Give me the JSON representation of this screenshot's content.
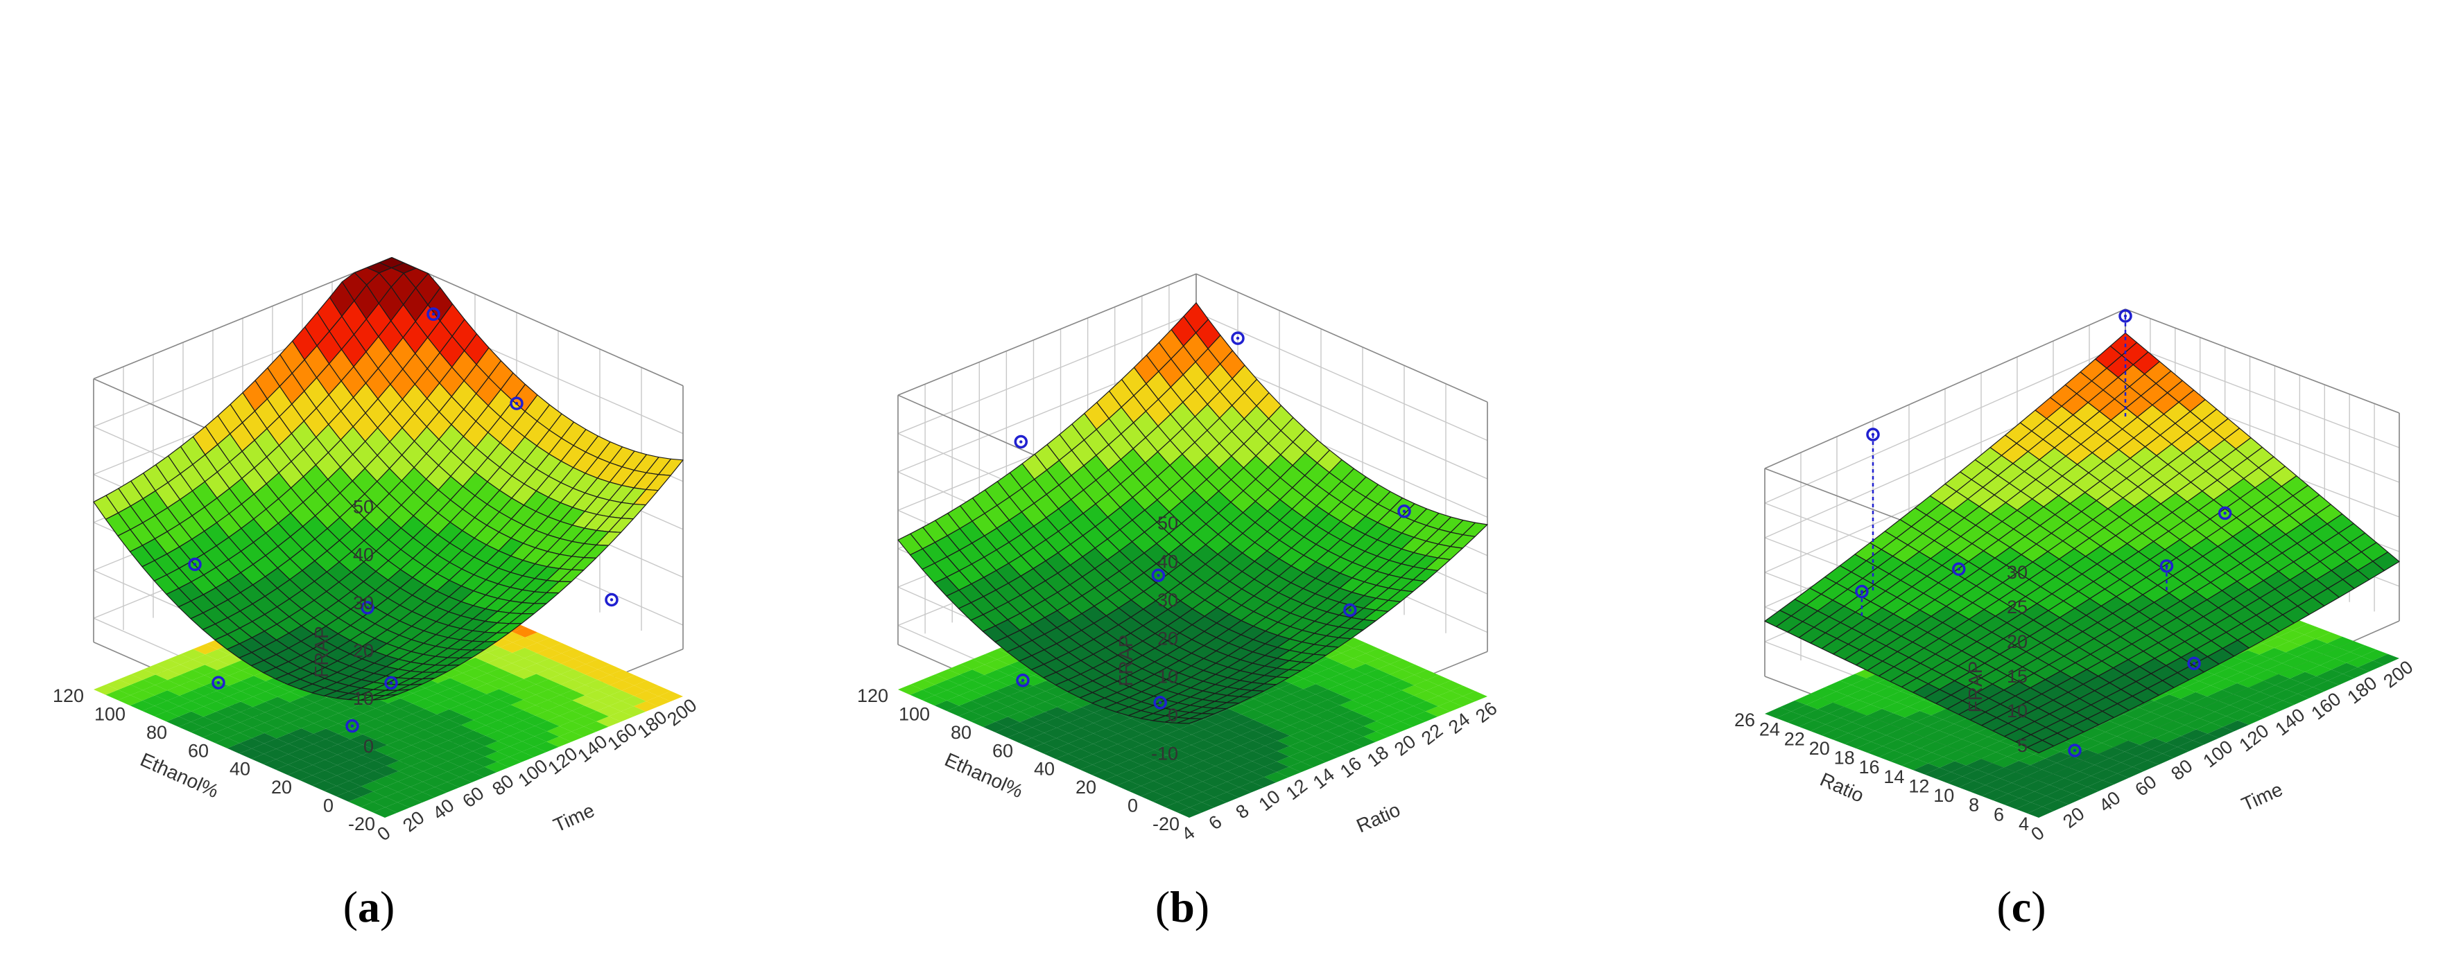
{
  "panels": [
    {
      "label": "(a)",
      "letter": "a",
      "chart_data": {
        "type": "surface3d",
        "zlabel": "FRAP",
        "xlabel": "Time",
        "ylabel": "Ethanol%",
        "x_ticks": [
          "0",
          "20",
          "40",
          "60",
          "80",
          "100",
          "120",
          "140",
          "160",
          "180",
          "200"
        ],
        "y_ticks": [
          "-20",
          "0",
          "20",
          "40",
          "60",
          "80",
          "100",
          "120"
        ],
        "z_ticks": [
          "0",
          "10",
          "20",
          "30",
          "40",
          "50"
        ],
        "xlim": [
          0,
          200
        ],
        "ylim": [
          -20,
          120
        ],
        "zlim": [
          -5,
          50
        ],
        "surface": {
          "form": "quadratic",
          "c": 4,
          "a": 0.06,
          "b": 0.0004,
          "ay": 0.0045,
          "by": -0.45
        },
        "points": [
          {
            "x": 200,
            "y": 100,
            "z": 42
          },
          {
            "x": 200,
            "y": 60,
            "z": 31
          },
          {
            "x": 40,
            "y": 100,
            "z": 10
          },
          {
            "x": 180,
            "y": 0,
            "z": 4
          },
          {
            "x": 100,
            "y": 60,
            "z": 1
          },
          {
            "x": 60,
            "y": 20,
            "z": -2
          },
          {
            "x": 0,
            "y": 60,
            "z": -2
          },
          {
            "x": 20,
            "y": 10,
            "z": -4
          }
        ]
      }
    },
    {
      "label": "(b)",
      "letter": "b",
      "chart_data": {
        "type": "surface3d",
        "zlabel": "FRAP",
        "xlabel": "Ratio",
        "ylabel": "Ethanol%",
        "x_ticks": [
          "4",
          "6",
          "8",
          "10",
          "12",
          "14",
          "16",
          "18",
          "20",
          "22",
          "24",
          "26"
        ],
        "y_ticks": [
          "-20",
          "0",
          "20",
          "40",
          "60",
          "80",
          "100",
          "120"
        ],
        "z_ticks": [
          "-10",
          "0",
          "10",
          "20",
          "30",
          "40",
          "50"
        ],
        "xlim": [
          4,
          26
        ],
        "ylim": [
          -20,
          120
        ],
        "zlim": [
          -15,
          50
        ],
        "surface": {
          "form": "quadratic",
          "c": -8,
          "a": 0.4,
          "b": 0.03,
          "ay": 0.0055,
          "by": -0.5
        },
        "points": [
          {
            "x": 26,
            "y": 100,
            "z": 38
          },
          {
            "x": 10,
            "y": 100,
            "z": 34
          },
          {
            "x": 26,
            "y": 20,
            "z": 12
          },
          {
            "x": 14,
            "y": 60,
            "z": 3
          },
          {
            "x": 22,
            "y": 20,
            "z": -8
          },
          {
            "x": 4,
            "y": 60,
            "z": -10
          },
          {
            "x": 8,
            "y": 20,
            "z": -12
          }
        ]
      }
    },
    {
      "label": "(c)",
      "letter": "c",
      "chart_data": {
        "type": "surface3d",
        "zlabel": "FRAP",
        "xlabel": "Time",
        "ylabel": "Ratio",
        "x_ticks": [
          "0",
          "20",
          "40",
          "60",
          "80",
          "100",
          "120",
          "140",
          "160",
          "180",
          "200"
        ],
        "y_ticks": [
          "4",
          "6",
          "8",
          "10",
          "12",
          "14",
          "16",
          "18",
          "20",
          "22",
          "24",
          "26"
        ],
        "z_ticks": [
          "5",
          "10",
          "15",
          "20",
          "25",
          "30"
        ],
        "xlim": [
          0,
          200
        ],
        "ylim": [
          4,
          26
        ],
        "zlim": [
          0,
          30
        ],
        "surface": {
          "form": "saddle",
          "c": 3.6,
          "ax": 0.04,
          "ay": 0.08,
          "bxy": 0.0028
        },
        "points": [
          {
            "x": 200,
            "y": 26,
            "z": 29,
            "base": 14
          },
          {
            "x": 60,
            "y": 26,
            "z": 28,
            "base": 5
          },
          {
            "x": 40,
            "y": 24,
            "z": 9,
            "base": 5
          },
          {
            "x": 80,
            "y": 22,
            "z": 9,
            "base": 9
          },
          {
            "x": 140,
            "y": 14,
            "z": 8,
            "base": 4
          },
          {
            "x": 200,
            "y": 18,
            "z": 6,
            "base": 6
          },
          {
            "x": 100,
            "y": 6,
            "z": 4,
            "base": 4
          },
          {
            "x": 20,
            "y": 4,
            "z": 2,
            "base": 2
          }
        ]
      }
    }
  ]
}
